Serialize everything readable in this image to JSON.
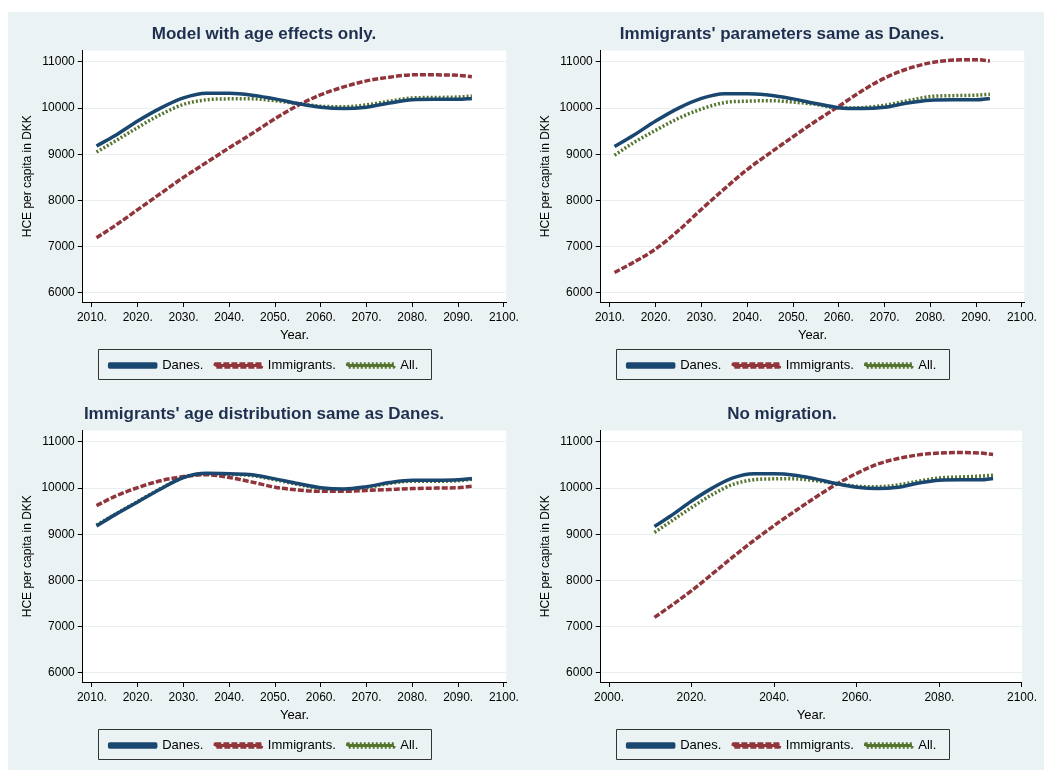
{
  "chart_data": [
    {
      "type": "line",
      "title": "Model with age effects only.",
      "xlabel": "Year.",
      "ylabel": "HCE per capita in DKK",
      "grid": "y",
      "legend": "bottom",
      "marker": "none",
      "x": [
        2011,
        2015,
        2020,
        2025,
        2030,
        2035,
        2040,
        2045,
        2050,
        2055,
        2060,
        2065,
        2070,
        2075,
        2080,
        2085,
        2090,
        2093
      ],
      "xlim": [
        2008,
        2100.5
      ],
      "ylim": [
        5800,
        11250
      ],
      "xticks": [
        {
          "value": 2010,
          "label": "2010."
        },
        {
          "value": 2020,
          "label": "2020."
        },
        {
          "value": 2030,
          "label": "2030."
        },
        {
          "value": 2040,
          "label": "2040."
        },
        {
          "value": 2050,
          "label": "2050."
        },
        {
          "value": 2060,
          "label": "2060."
        },
        {
          "value": 2070,
          "label": "2070."
        },
        {
          "value": 2080,
          "label": "2080."
        },
        {
          "value": 2090,
          "label": "2090."
        },
        {
          "value": 2100,
          "label": "2100."
        }
      ],
      "yticks": [
        6000,
        7000,
        8000,
        9000,
        10000,
        11000
      ],
      "series": [
        {
          "name": "Danes.",
          "color": "#1a476f",
          "line_style": "solid",
          "values": [
            9180,
            9400,
            9720,
            10000,
            10220,
            10320,
            10320,
            10280,
            10200,
            10100,
            10020,
            9990,
            10020,
            10110,
            10180,
            10190,
            10190,
            10210
          ]
        },
        {
          "name": "Immigrants.",
          "color": "#90353b",
          "line_style": "dashed",
          "values": [
            7190,
            7450,
            7800,
            8150,
            8500,
            8820,
            9140,
            9450,
            9770,
            10060,
            10290,
            10460,
            10590,
            10670,
            10720,
            10720,
            10710,
            10680
          ]
        },
        {
          "name": "All.",
          "color": "#55752f",
          "line_style": "dotted",
          "values": [
            9050,
            9280,
            9580,
            9860,
            10080,
            10180,
            10200,
            10200,
            10160,
            10100,
            10040,
            10030,
            10070,
            10150,
            10220,
            10230,
            10240,
            10260
          ]
        }
      ]
    },
    {
      "type": "line",
      "title": "Immigrants' parameters same as Danes.",
      "xlabel": "Year.",
      "ylabel": "HCE per capita in DKK",
      "grid": "y",
      "legend": "bottom",
      "marker": "none",
      "x": [
        2011,
        2015,
        2020,
        2025,
        2030,
        2035,
        2040,
        2045,
        2050,
        2055,
        2060,
        2065,
        2070,
        2075,
        2080,
        2085,
        2090,
        2093
      ],
      "xlim": [
        2008,
        2100.5
      ],
      "ylim": [
        5800,
        11250
      ],
      "xticks": [
        {
          "value": 2010,
          "label": "2010."
        },
        {
          "value": 2020,
          "label": "2020."
        },
        {
          "value": 2030,
          "label": "2030."
        },
        {
          "value": 2040,
          "label": "2040."
        },
        {
          "value": 2050,
          "label": "2050."
        },
        {
          "value": 2060,
          "label": "2060."
        },
        {
          "value": 2070,
          "label": "2070."
        },
        {
          "value": 2080,
          "label": "2080."
        },
        {
          "value": 2090,
          "label": "2090."
        },
        {
          "value": 2100,
          "label": "2100."
        }
      ],
      "yticks": [
        6000,
        7000,
        8000,
        9000,
        10000,
        11000
      ],
      "series": [
        {
          "name": "Danes.",
          "color": "#1a476f",
          "line_style": "solid",
          "values": [
            9170,
            9400,
            9720,
            10000,
            10210,
            10310,
            10310,
            10280,
            10200,
            10100,
            10010,
            9990,
            10020,
            10110,
            10170,
            10180,
            10180,
            10210
          ]
        },
        {
          "name": "Immigrants.",
          "color": "#90353b",
          "line_style": "dashed",
          "values": [
            6440,
            6650,
            6950,
            7350,
            7810,
            8250,
            8670,
            9030,
            9380,
            9720,
            10040,
            10370,
            10650,
            10850,
            10980,
            11040,
            11050,
            11020
          ]
        },
        {
          "name": "All.",
          "color": "#55752f",
          "line_style": "dotted",
          "values": [
            8980,
            9240,
            9520,
            9780,
            9980,
            10120,
            10150,
            10160,
            10130,
            10080,
            10000,
            10010,
            10060,
            10160,
            10250,
            10270,
            10280,
            10300
          ]
        }
      ]
    },
    {
      "type": "line",
      "title": "Immigrants' age distribution same as Danes.",
      "xlabel": "Year.",
      "ylabel": "HCE per capita in DKK",
      "grid": "y",
      "legend": "bottom",
      "marker": "none",
      "x": [
        2011,
        2015,
        2020,
        2025,
        2030,
        2035,
        2040,
        2045,
        2050,
        2055,
        2060,
        2065,
        2070,
        2075,
        2080,
        2085,
        2090,
        2093
      ],
      "xlim": [
        2008,
        2100.5
      ],
      "ylim": [
        5800,
        11250
      ],
      "xticks": [
        {
          "value": 2010,
          "label": "2010."
        },
        {
          "value": 2020,
          "label": "2020."
        },
        {
          "value": 2030,
          "label": "2030."
        },
        {
          "value": 2040,
          "label": "2040."
        },
        {
          "value": 2050,
          "label": "2050."
        },
        {
          "value": 2060,
          "label": "2060."
        },
        {
          "value": 2070,
          "label": "2070."
        },
        {
          "value": 2080,
          "label": "2080."
        },
        {
          "value": 2090,
          "label": "2090."
        },
        {
          "value": 2100,
          "label": "2100."
        }
      ],
      "yticks": [
        6000,
        7000,
        8000,
        9000,
        10000,
        11000
      ],
      "series": [
        {
          "name": "Danes.",
          "color": "#1a476f",
          "line_style": "solid",
          "values": [
            9180,
            9420,
            9700,
            9980,
            10230,
            10320,
            10310,
            10290,
            10200,
            10100,
            10010,
            9980,
            10030,
            10120,
            10170,
            10170,
            10180,
            10210
          ]
        },
        {
          "name": "Immigrants.",
          "color": "#90353b",
          "line_style": "dashed",
          "values": [
            9620,
            9820,
            10010,
            10160,
            10250,
            10290,
            10230,
            10130,
            10020,
            9960,
            9930,
            9930,
            9950,
            9970,
            9990,
            10000,
            10010,
            10040
          ]
        },
        {
          "name": "All.",
          "color": "#55752f",
          "line_style": "dotted",
          "values": [
            9200,
            9430,
            9710,
            9990,
            10230,
            10310,
            10300,
            10270,
            10180,
            10080,
            9990,
            9970,
            10010,
            10100,
            10150,
            10150,
            10160,
            10190
          ]
        }
      ]
    },
    {
      "type": "line",
      "title": "No migration.",
      "xlabel": "Year.",
      "ylabel": "HCE per capita in DKK",
      "grid": "y",
      "legend": "bottom",
      "marker": "none",
      "x": [
        2011,
        2015,
        2020,
        2025,
        2030,
        2035,
        2040,
        2045,
        2050,
        2055,
        2060,
        2065,
        2070,
        2075,
        2080,
        2085,
        2090,
        2093
      ],
      "xlim": [
        1998,
        2100
      ],
      "ylim": [
        5800,
        11250
      ],
      "xticks": [
        {
          "value": 2000,
          "label": "2000."
        },
        {
          "value": 2020,
          "label": "2020."
        },
        {
          "value": 2040,
          "label": "2040."
        },
        {
          "value": 2060,
          "label": "2060."
        },
        {
          "value": 2080,
          "label": "2080."
        },
        {
          "value": 2100,
          "label": "2100."
        }
      ],
      "yticks": [
        6000,
        7000,
        8000,
        9000,
        10000,
        11000
      ],
      "series": [
        {
          "name": "Danes.",
          "color": "#1a476f",
          "line_style": "solid",
          "values": [
            9170,
            9400,
            9720,
            10000,
            10220,
            10310,
            10310,
            10280,
            10200,
            10100,
            10020,
            9990,
            10020,
            10110,
            10170,
            10180,
            10180,
            10210
          ]
        },
        {
          "name": "Immigrants.",
          "color": "#90353b",
          "line_style": "dashed",
          "values": [
            7200,
            7450,
            7780,
            8140,
            8510,
            8860,
            9190,
            9500,
            9800,
            10080,
            10320,
            10520,
            10640,
            10720,
            10760,
            10770,
            10760,
            10730
          ]
        },
        {
          "name": "All.",
          "color": "#55752f",
          "line_style": "dotted",
          "values": [
            9040,
            9280,
            9580,
            9860,
            10080,
            10180,
            10200,
            10200,
            10160,
            10100,
            10040,
            10030,
            10070,
            10150,
            10220,
            10240,
            10260,
            10280
          ]
        }
      ]
    }
  ]
}
